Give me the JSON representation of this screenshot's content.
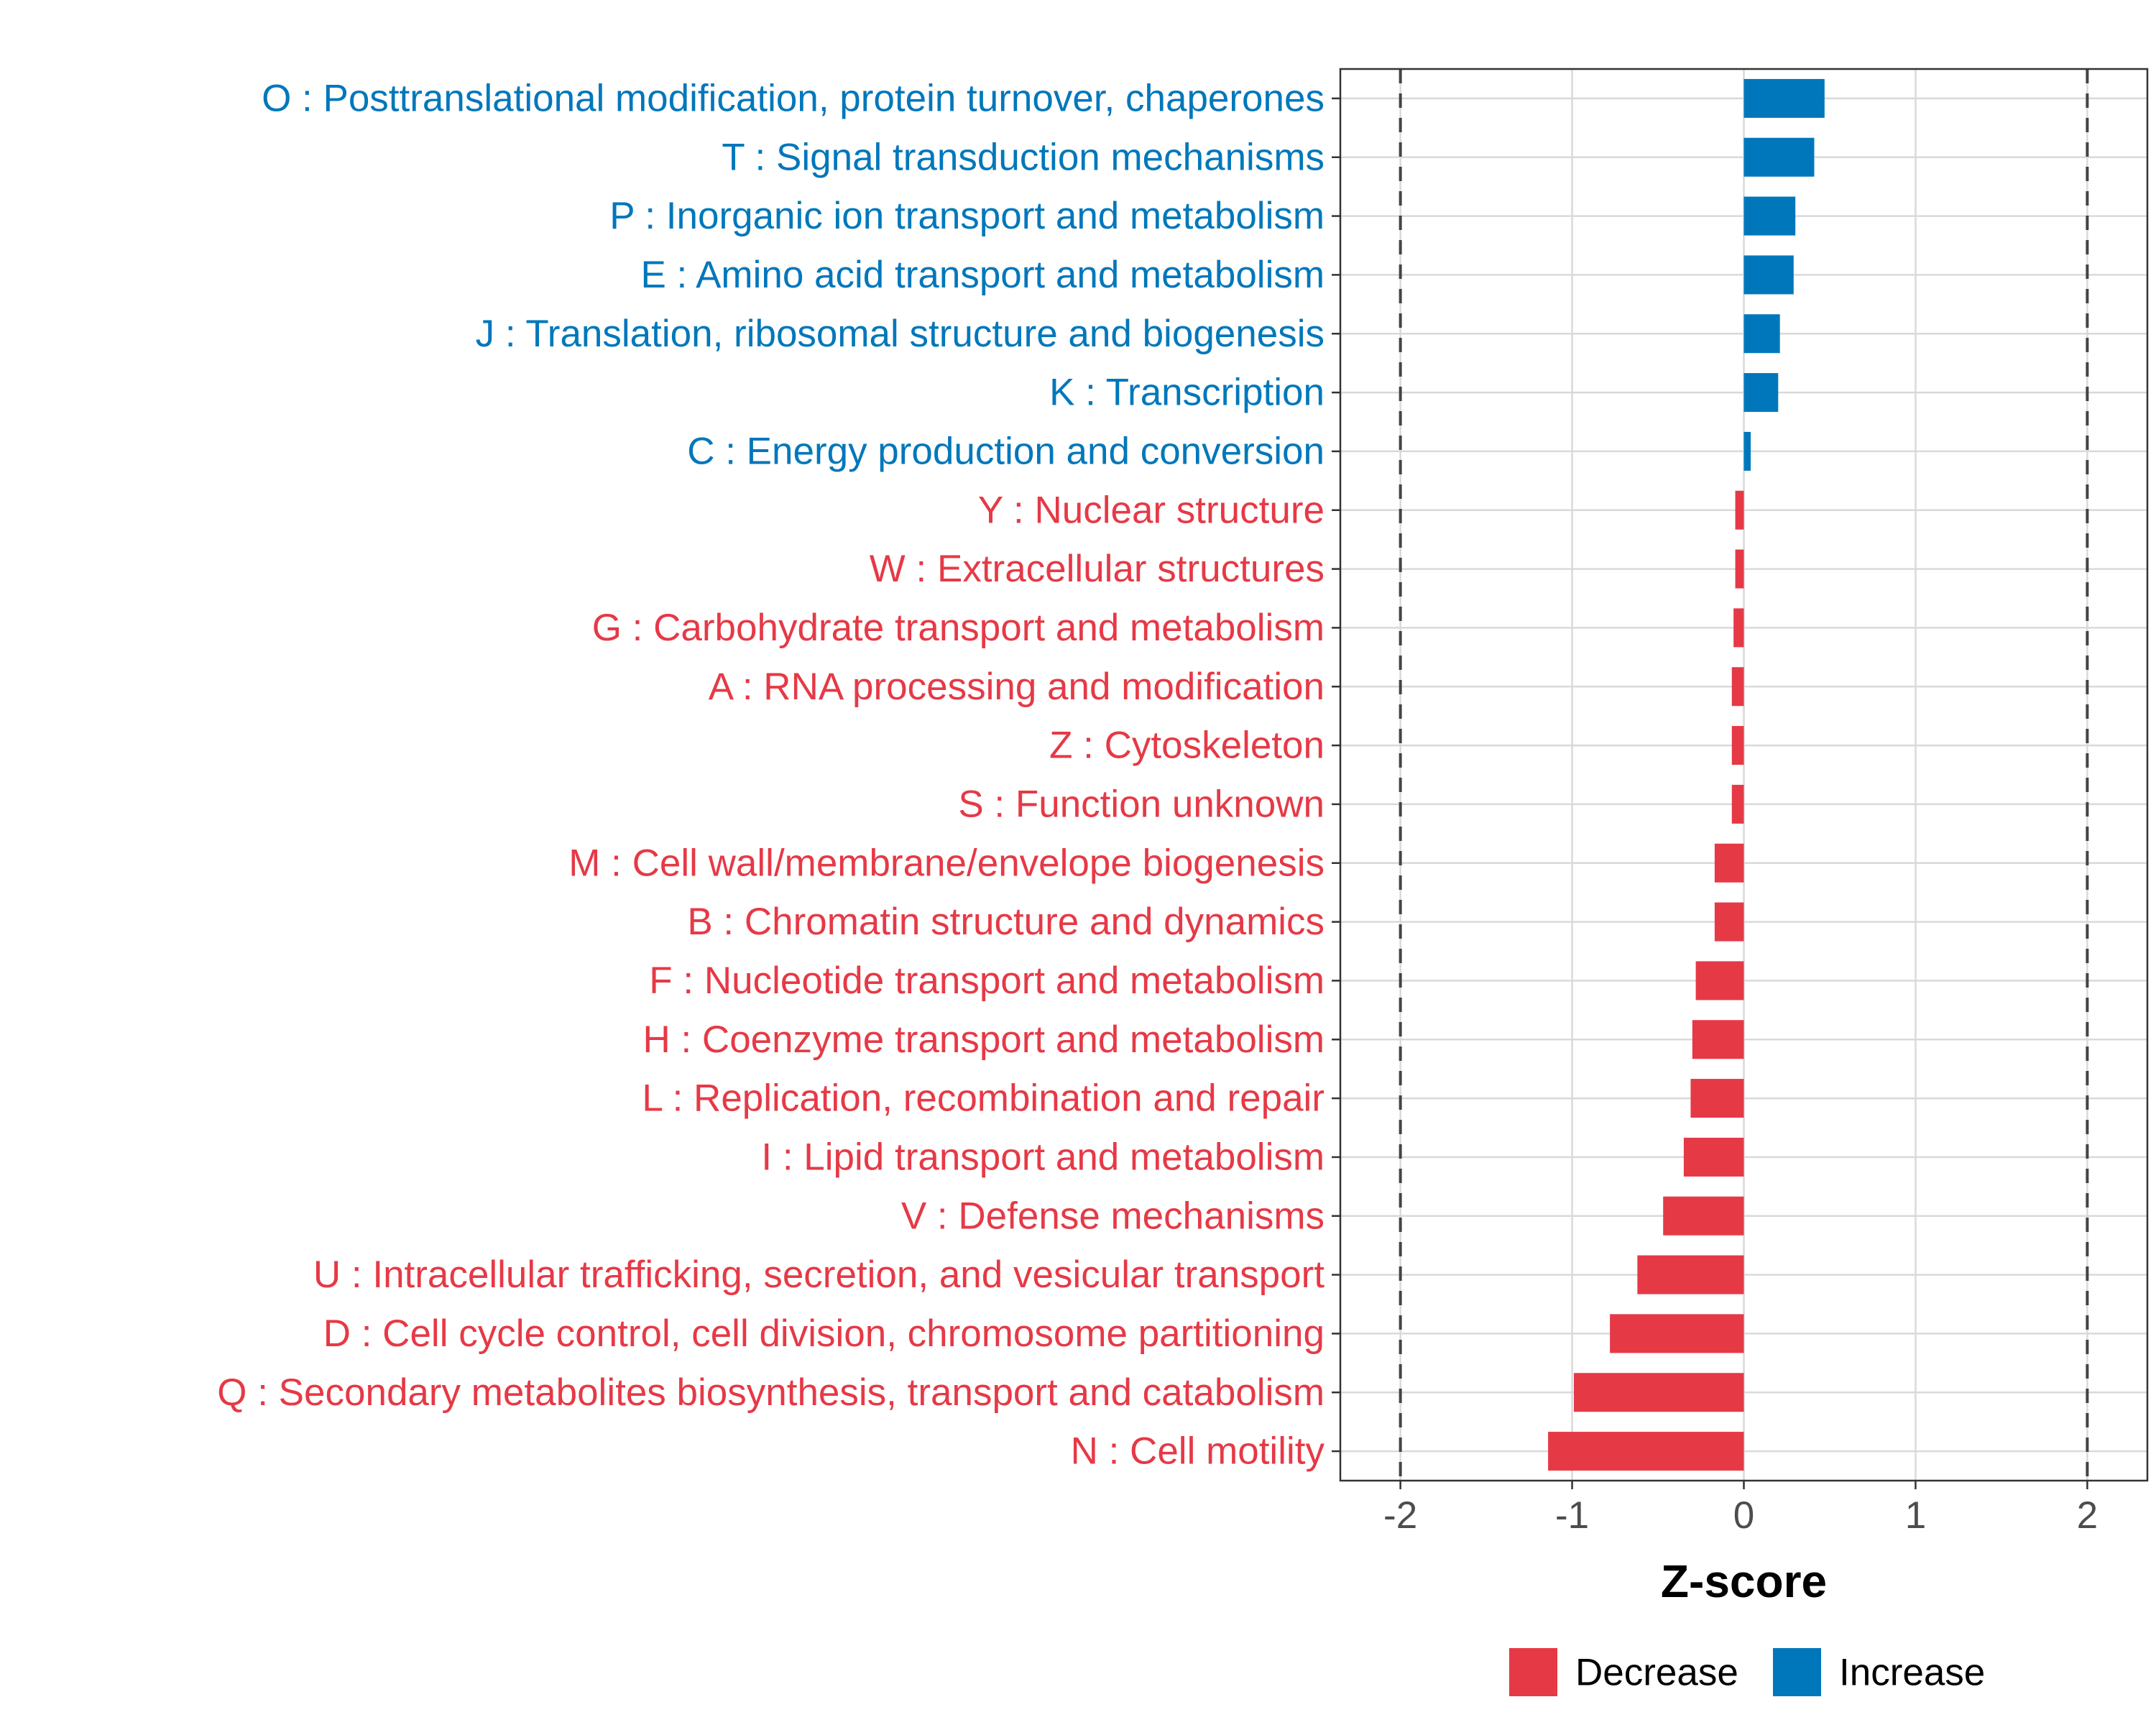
{
  "chart_data": {
    "type": "bar",
    "orientation": "horizontal",
    "xlabel": "Z-score",
    "xlim": [
      -2.35,
      2.35
    ],
    "x_ticks": [
      -2,
      -1,
      0,
      1,
      2
    ],
    "x_tick_labels": [
      "-2",
      "-1",
      "0",
      "1",
      "2"
    ],
    "reference_lines": [
      -2,
      2
    ],
    "grid": true,
    "legend_position": "bottom",
    "legend": [
      {
        "label": "Decrease",
        "color": "#e63946"
      },
      {
        "label": "Increase",
        "color": "#0077bb"
      }
    ],
    "categories": [
      "O : Posttranslational modification, protein turnover, chaperones",
      "T : Signal transduction mechanisms",
      "P : Inorganic ion transport and metabolism",
      "E : Amino acid transport and metabolism",
      "J : Translation, ribosomal structure and biogenesis",
      "K : Transcription",
      "C : Energy production and conversion",
      "Y : Nuclear structure",
      "W : Extracellular structures",
      "G : Carbohydrate transport and metabolism",
      "A : RNA processing and modification",
      "Z : Cytoskeleton",
      "S : Function unknown",
      "M : Cell wall/membrane/envelope biogenesis",
      "B : Chromatin structure and dynamics",
      "F : Nucleotide transport and metabolism",
      "H : Coenzyme transport and metabolism",
      "L : Replication, recombination and repair",
      "I : Lipid transport and metabolism",
      "V : Defense mechanisms",
      "U : Intracellular trafficking, secretion, and vesicular transport",
      "D : Cell cycle control, cell division, chromosome partitioning",
      "Q : Secondary metabolites biosynthesis, transport and catabolism",
      "N : Cell motility"
    ],
    "values": [
      0.47,
      0.41,
      0.3,
      0.29,
      0.21,
      0.2,
      0.04,
      -0.05,
      -0.05,
      -0.06,
      -0.07,
      -0.07,
      -0.07,
      -0.17,
      -0.17,
      -0.28,
      -0.3,
      -0.31,
      -0.35,
      -0.47,
      -0.62,
      -0.78,
      -0.99,
      -1.14
    ],
    "direction": [
      "Increase",
      "Increase",
      "Increase",
      "Increase",
      "Increase",
      "Increase",
      "Increase",
      "Decrease",
      "Decrease",
      "Decrease",
      "Decrease",
      "Decrease",
      "Decrease",
      "Decrease",
      "Decrease",
      "Decrease",
      "Decrease",
      "Decrease",
      "Decrease",
      "Decrease",
      "Decrease",
      "Decrease",
      "Decrease",
      "Decrease"
    ]
  }
}
